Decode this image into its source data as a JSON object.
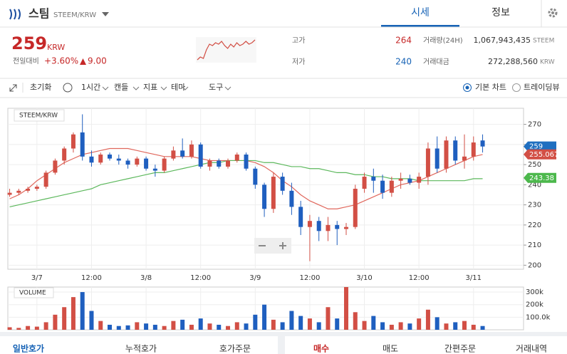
{
  "header": {
    "name": "스팀",
    "pair": "STEEM/KRW",
    "tabs": [
      "시세",
      "정보"
    ]
  },
  "summary": {
    "price": "259",
    "unit": "KRW",
    "change_label": "전일대비",
    "change_pct": "+3.60%",
    "change_abs": "9.00",
    "high_label": "고가",
    "high": "264",
    "low_label": "저가",
    "low": "240",
    "volume_label": "거래량(24H)",
    "volume": "1,067,943,435",
    "volume_unit": "STEEM",
    "amount_label": "거래대금",
    "amount": "272,288,560",
    "amount_unit": "KRW"
  },
  "toolbar": {
    "reset": "초기화",
    "interval": "1시간",
    "style": "캔들",
    "indicator": "지표",
    "theme": "테마",
    "tools": "도구",
    "basic": "기본 차트",
    "tradingview": "트레이딩뷰"
  },
  "bottom_tabs": {
    "left": [
      "일반호가",
      "누적호가",
      "호가주문"
    ],
    "right": [
      "매수",
      "매도",
      "간편주문",
      "거래내역"
    ]
  },
  "chart_data": {
    "type": "candlestick",
    "title": "STEEM/KRW",
    "volume_title": "VOLUME",
    "up_color": "#d24f45",
    "down_color": "#1f5fbf",
    "sparkline": [
      245,
      247,
      246,
      252,
      256,
      255,
      257,
      256,
      258,
      255,
      253,
      256,
      254,
      257,
      255,
      256,
      258,
      256,
      257,
      259
    ],
    "open": [
      235,
      236,
      237,
      238,
      239,
      246,
      252,
      258,
      266,
      254,
      251,
      255,
      253,
      252,
      250,
      253,
      248,
      247,
      253,
      257,
      254,
      260,
      249,
      252,
      249,
      252,
      255,
      248,
      240,
      228,
      244,
      237,
      229,
      219,
      222,
      217,
      220,
      218,
      219,
      238,
      244,
      242,
      236,
      242,
      243,
      241,
      244,
      258,
      248,
      262,
      252,
      254,
      262
    ],
    "high": [
      238,
      238,
      239,
      240,
      247,
      253,
      259,
      266,
      275,
      257,
      256,
      256,
      255,
      253,
      254,
      254,
      250,
      254,
      259,
      263,
      262,
      261,
      253,
      253,
      253,
      256,
      256,
      249,
      241,
      246,
      246,
      241,
      232,
      225,
      224,
      224,
      222,
      221,
      240,
      246,
      248,
      245,
      244,
      246,
      245,
      246,
      261,
      264,
      264,
      264,
      265,
      264,
      265
    ],
    "low": [
      234,
      235,
      236,
      237,
      238,
      245,
      250,
      256,
      252,
      249,
      250,
      252,
      250,
      248,
      249,
      247,
      244,
      246,
      252,
      253,
      253,
      248,
      247,
      248,
      248,
      251,
      247,
      238,
      224,
      226,
      235,
      225,
      215,
      202,
      212,
      212,
      210,
      215,
      218,
      236,
      236,
      233,
      234,
      238,
      240,
      238,
      240,
      246,
      246,
      250,
      248,
      252,
      256
    ],
    "close": [
      236,
      237,
      238,
      239,
      246,
      252,
      258,
      265,
      254,
      251,
      255,
      253,
      252,
      250,
      253,
      248,
      247,
      253,
      257,
      254,
      260,
      249,
      252,
      249,
      252,
      255,
      248,
      240,
      228,
      244,
      237,
      229,
      219,
      222,
      217,
      220,
      218,
      219,
      238,
      244,
      242,
      236,
      242,
      243,
      241,
      244,
      258,
      248,
      262,
      252,
      254,
      261,
      259
    ],
    "ma": [
      {
        "color": "#e0675c",
        "values": [
          233,
          235,
          238,
          242,
          245,
          248,
          251,
          253,
          255,
          256,
          257,
          258,
          258,
          258,
          257,
          256,
          255,
          254,
          254,
          254,
          254,
          253,
          252,
          252,
          252,
          252,
          252,
          251,
          249,
          246,
          242,
          239,
          235,
          232,
          230,
          228,
          228,
          229,
          230,
          232,
          234,
          236,
          238,
          240,
          241,
          242,
          244,
          246,
          248,
          250,
          252,
          254,
          255
        ]
      },
      {
        "color": "#5cb85c",
        "values": [
          229,
          230,
          231,
          232,
          233,
          234,
          235,
          236,
          237,
          238,
          240,
          241,
          242,
          243,
          244,
          245,
          246,
          246,
          247,
          248,
          249,
          250,
          251,
          251,
          252,
          252,
          252,
          252,
          251,
          251,
          250,
          249,
          249,
          248,
          248,
          247,
          246,
          246,
          245,
          245,
          244,
          244,
          243,
          243,
          243,
          242,
          242,
          242,
          242,
          242,
          242,
          243,
          243
        ]
      }
    ],
    "volume_values": [
      20000,
      15000,
      30000,
      25000,
      60000,
      120000,
      180000,
      260000,
      300000,
      150000,
      70000,
      40000,
      30000,
      35000,
      60000,
      50000,
      40000,
      30000,
      70000,
      80000,
      40000,
      90000,
      50000,
      40000,
      30000,
      60000,
      50000,
      120000,
      200000,
      80000,
      60000,
      150000,
      110000,
      90000,
      60000,
      180000,
      90000,
      340000,
      140000,
      70000,
      110000,
      60000,
      40000,
      60000,
      50000,
      90000,
      160000,
      100000,
      50000,
      60000,
      70000,
      40000,
      30000
    ],
    "xlim": [
      -0.2,
      56.5
    ],
    "xticks": [
      {
        "value": 3,
        "label": "3/7"
      },
      {
        "value": 9,
        "label": "12:00"
      },
      {
        "value": 15,
        "label": "3/8"
      },
      {
        "value": 21,
        "label": "12:00"
      },
      {
        "value": 27,
        "label": "3/9"
      },
      {
        "value": 33,
        "label": "12:00"
      },
      {
        "value": 39,
        "label": "3/10"
      },
      {
        "value": 45,
        "label": "12:00"
      },
      {
        "value": 51,
        "label": "3/11"
      }
    ],
    "ylim": [
      198,
      278
    ],
    "yticks": [
      200,
      210,
      220,
      230,
      240,
      250,
      260,
      270
    ],
    "vlim": [
      0,
      340000
    ],
    "vticks": [
      {
        "value": 100000,
        "label": "100.0k"
      },
      {
        "value": 200000,
        "label": "200k"
      },
      {
        "value": 300000,
        "label": "300k"
      }
    ],
    "price_tags": [
      {
        "value": 259,
        "color": "#1f6fc0"
      },
      {
        "value": 255.067,
        "color": "#d24f45"
      },
      {
        "value": 243.38,
        "color": "#4cb84c"
      }
    ],
    "grid": true
  }
}
